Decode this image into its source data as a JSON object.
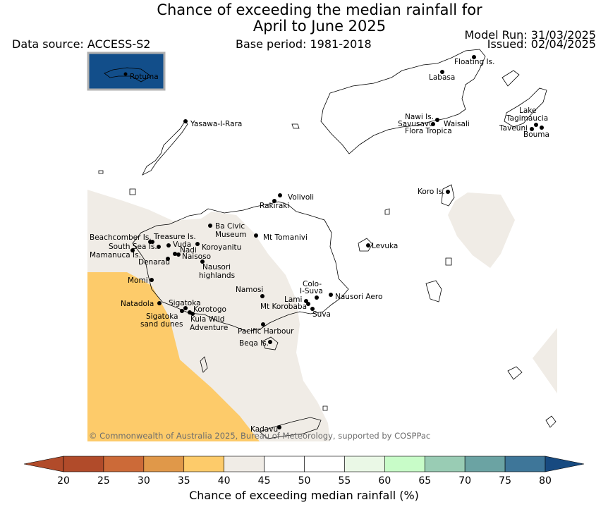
{
  "title_line1": "Chance of exceeding the median rainfall for",
  "title_line2": "April to June 2025",
  "data_source": "Data source: ACCESS-S2",
  "base_period": "Base period: 1981-2018",
  "model_run": "Model Run: 31/03/2025",
  "issued": "Issued: 02/04/2025",
  "inset_label": "Rotuma",
  "copyright": "© Commonwealth of Australia 2025, Bureau of Meteorology, supported by COSPPac",
  "colorbar": {
    "label": "Chance of exceeding median rainfall (%)",
    "ticks": [
      "20",
      "25",
      "30",
      "35",
      "40",
      "45",
      "50",
      "55",
      "60",
      "65",
      "70",
      "75",
      "80"
    ],
    "colors": [
      "#b14b2a",
      "#cc6a38",
      "#e09849",
      "#fdcb6a",
      "#f0ece6",
      "#ffffff",
      "#ffffff",
      "#eaf8e6",
      "#c8fcc8",
      "#99ccb4",
      "#6ba3a3",
      "#3e7699",
      "#174a80"
    ]
  },
  "map_colors": {
    "band_35_40": "#fdcb6a",
    "band_40_45": "#f0ece6",
    "land_outline": "#000000",
    "inset_sea": "#124e8a"
  },
  "places": [
    {
      "name": "Floating Is."
    },
    {
      "name": "Labasa"
    },
    {
      "name": "Yasawa-I-Rara"
    },
    {
      "name": "Nawi Is."
    },
    {
      "name": "Savusavu"
    },
    {
      "name": "Waisali"
    },
    {
      "name": "Flora Tropica"
    },
    {
      "name": "Lake"
    },
    {
      "name": "Tagimaucia"
    },
    {
      "name": "Taveuni"
    },
    {
      "name": "Bouma"
    },
    {
      "name": "Volivoli"
    },
    {
      "name": "Rakiraki"
    },
    {
      "name": "Koro Is."
    },
    {
      "name": "Ba Civic"
    },
    {
      "name": "Museum"
    },
    {
      "name": "Mt Tomanivi"
    },
    {
      "name": "Beachcomber Is."
    },
    {
      "name": "Treasure Is."
    },
    {
      "name": "South Sea Is."
    },
    {
      "name": "Vuda"
    },
    {
      "name": "Koroyanitu"
    },
    {
      "name": "Nadi"
    },
    {
      "name": "Mamanuca Is."
    },
    {
      "name": "Naisoso"
    },
    {
      "name": "Denarau"
    },
    {
      "name": "Levuka"
    },
    {
      "name": "Nausori"
    },
    {
      "name": "highlands"
    },
    {
      "name": "Momi"
    },
    {
      "name": "Colo-"
    },
    {
      "name": "I-Suva"
    },
    {
      "name": "Namosi"
    },
    {
      "name": "Lami"
    },
    {
      "name": "Nausori Aero"
    },
    {
      "name": "Natadola"
    },
    {
      "name": "Sigatoka"
    },
    {
      "name": "Mt Korobaba"
    },
    {
      "name": "Korotogo"
    },
    {
      "name": "Suva"
    },
    {
      "name": "Sigatoka"
    },
    {
      "name": "sand dunes"
    },
    {
      "name": "Kula Wild"
    },
    {
      "name": "Adventure"
    },
    {
      "name": "Pacific Harbour"
    },
    {
      "name": "Beqa Is."
    },
    {
      "name": "Kadavu"
    }
  ]
}
